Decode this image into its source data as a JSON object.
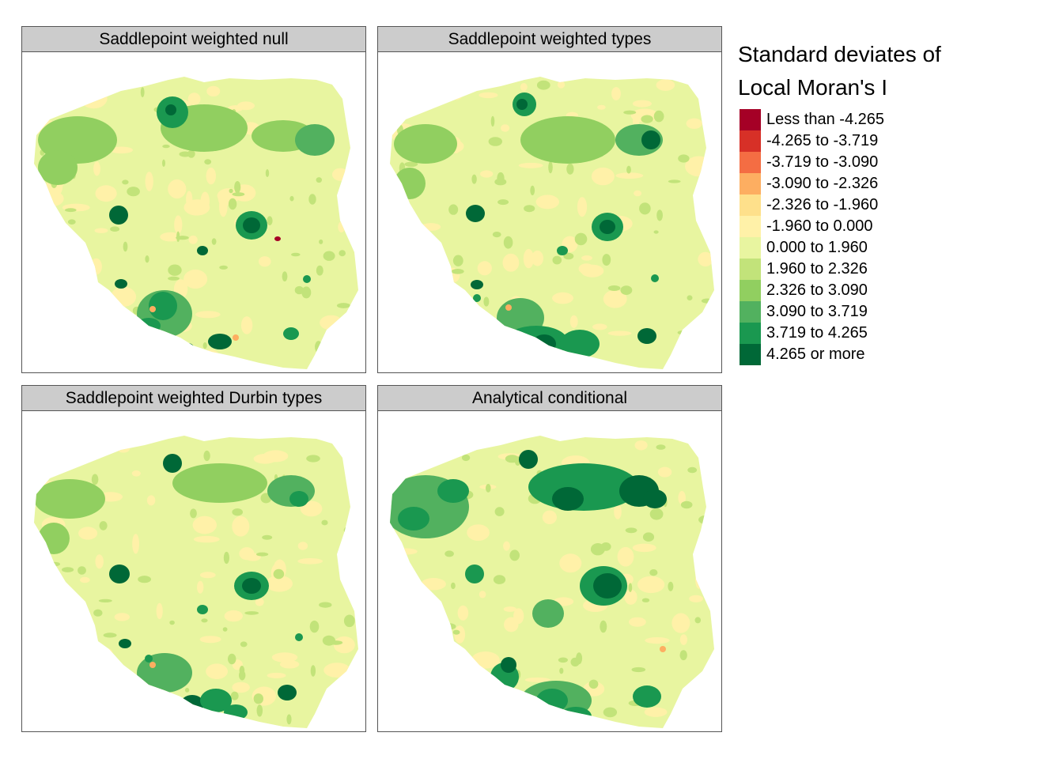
{
  "panels": [
    {
      "title": "Saddlepoint weighted null"
    },
    {
      "title": "Saddlepoint weighted types"
    },
    {
      "title": "Saddlepoint weighted Durbin types"
    },
    {
      "title": "Analytical conditional"
    }
  ],
  "legend": {
    "title_line1": "Standard deviates of",
    "title_line2": "Local Moran's I",
    "classes": [
      {
        "label": "Less than -4.265",
        "color": "#a50026"
      },
      {
        "label": "-4.265 to -3.719",
        "color": "#d73027"
      },
      {
        "label": "-3.719 to -3.090",
        "color": "#f46d43"
      },
      {
        "label": "-3.090 to -2.326",
        "color": "#fdae61"
      },
      {
        "label": "-2.326 to -1.960",
        "color": "#fee08b"
      },
      {
        "label": "-1.960 to 0.000",
        "color": "#fff1a8"
      },
      {
        "label": "0.000 to 1.960",
        "color": "#e8f5a0"
      },
      {
        "label": "1.960 to 2.326",
        "color": "#c2e37a"
      },
      {
        "label": "2.326 to 3.090",
        "color": "#91cf60"
      },
      {
        "label": "3.090 to 3.719",
        "color": "#52b15f"
      },
      {
        "label": "3.719 to 4.265",
        "color": "#1a9850"
      },
      {
        "label": "4.265 or more",
        "color": "#006837"
      }
    ]
  }
}
